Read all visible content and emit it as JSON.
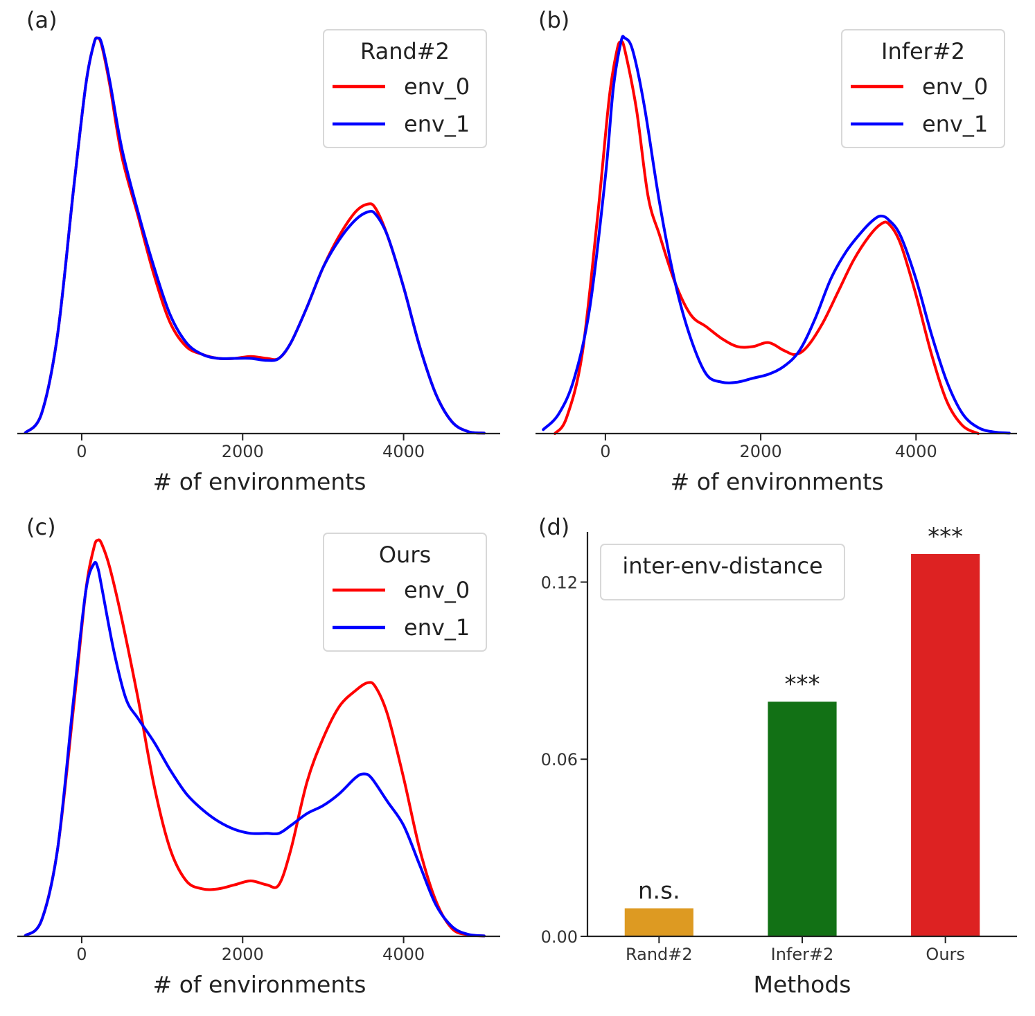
{
  "chart_data": [
    {
      "id": "a",
      "panel_label": "(a)",
      "type": "line",
      "subtype": "kde",
      "xlabel": "# of environments",
      "ylabel": "",
      "xlim": [
        -800,
        5200
      ],
      "ylim": [
        0,
        1.0
      ],
      "xticks": [
        0,
        2000,
        4000
      ],
      "xtick_labels": [
        "0",
        "2000",
        "4000"
      ],
      "legend": {
        "title": "Rand#2",
        "position": "top-right"
      },
      "series": [
        {
          "name": "env_0",
          "color": "#ff0000",
          "x": [
            -700,
            -500,
            -300,
            -100,
            50,
            150,
            200,
            250,
            350,
            500,
            700,
            900,
            1100,
            1300,
            1500,
            1700,
            1900,
            2100,
            2300,
            2450,
            2600,
            2800,
            3000,
            3200,
            3400,
            3550,
            3650,
            3800,
            4000,
            4200,
            4400,
            4600,
            4800,
            5000
          ],
          "y": [
            0.002,
            0.05,
            0.25,
            0.62,
            0.88,
            0.985,
            1.0,
            0.98,
            0.88,
            0.7,
            0.55,
            0.4,
            0.28,
            0.22,
            0.2,
            0.19,
            0.19,
            0.195,
            0.19,
            0.19,
            0.23,
            0.32,
            0.42,
            0.5,
            0.56,
            0.58,
            0.57,
            0.5,
            0.37,
            0.22,
            0.1,
            0.03,
            0.005,
            0.001
          ]
        },
        {
          "name": "env_1",
          "color": "#0000ff",
          "x": [
            -700,
            -500,
            -300,
            -100,
            50,
            150,
            200,
            250,
            350,
            500,
            700,
            900,
            1100,
            1300,
            1500,
            1700,
            1900,
            2100,
            2300,
            2450,
            2600,
            2800,
            3000,
            3200,
            3400,
            3550,
            3650,
            3800,
            4000,
            4200,
            4400,
            4600,
            4800,
            5000
          ],
          "y": [
            0.002,
            0.05,
            0.25,
            0.62,
            0.88,
            0.985,
            1.0,
            0.985,
            0.89,
            0.72,
            0.56,
            0.42,
            0.3,
            0.23,
            0.2,
            0.19,
            0.19,
            0.19,
            0.185,
            0.19,
            0.23,
            0.32,
            0.42,
            0.49,
            0.54,
            0.56,
            0.555,
            0.5,
            0.37,
            0.22,
            0.1,
            0.03,
            0.005,
            0.001
          ]
        }
      ]
    },
    {
      "id": "b",
      "panel_label": "(b)",
      "type": "line",
      "subtype": "kde",
      "xlabel": "# of environments",
      "ylabel": "",
      "xlim": [
        -900,
        5300
      ],
      "ylim": [
        0,
        1.0
      ],
      "xticks": [
        0,
        2000,
        4000
      ],
      "xtick_labels": [
        "0",
        "2000",
        "4000"
      ],
      "legend": {
        "title": "Infer#2",
        "position": "top-right"
      },
      "series": [
        {
          "name": "env_0",
          "color": "#ff0000",
          "x": [
            -650,
            -500,
            -300,
            -100,
            50,
            150,
            200,
            250,
            400,
            550,
            700,
            900,
            1100,
            1300,
            1500,
            1700,
            1900,
            2100,
            2300,
            2450,
            2600,
            2800,
            3000,
            3200,
            3400,
            3550,
            3650,
            3800,
            4000,
            4200,
            4400,
            4600,
            4800
          ],
          "y": [
            0.0,
            0.04,
            0.2,
            0.55,
            0.85,
            0.97,
            0.99,
            0.97,
            0.82,
            0.6,
            0.5,
            0.38,
            0.3,
            0.27,
            0.24,
            0.22,
            0.22,
            0.23,
            0.21,
            0.2,
            0.22,
            0.28,
            0.36,
            0.44,
            0.5,
            0.53,
            0.53,
            0.48,
            0.35,
            0.2,
            0.08,
            0.02,
            0.0
          ]
        },
        {
          "name": "env_1",
          "color": "#0000ff",
          "x": [
            -800,
            -600,
            -400,
            -200,
            0,
            100,
            200,
            250,
            350,
            500,
            700,
            900,
            1100,
            1300,
            1500,
            1700,
            1900,
            2100,
            2300,
            2500,
            2700,
            2900,
            3100,
            3300,
            3450,
            3550,
            3650,
            3800,
            4000,
            4200,
            4400,
            4600,
            4800,
            5000,
            5200
          ],
          "y": [
            0.01,
            0.05,
            0.14,
            0.32,
            0.65,
            0.87,
            0.99,
            1.0,
            0.97,
            0.83,
            0.58,
            0.38,
            0.24,
            0.15,
            0.13,
            0.13,
            0.14,
            0.15,
            0.17,
            0.21,
            0.29,
            0.39,
            0.46,
            0.51,
            0.54,
            0.55,
            0.54,
            0.5,
            0.39,
            0.25,
            0.13,
            0.05,
            0.015,
            0.004,
            0.001
          ]
        }
      ]
    },
    {
      "id": "c",
      "panel_label": "(c)",
      "type": "line",
      "subtype": "kde",
      "xlabel": "# of environments",
      "ylabel": "",
      "xlim": [
        -800,
        5200
      ],
      "ylim": [
        0,
        1.0
      ],
      "xticks": [
        0,
        2000,
        4000
      ],
      "xtick_labels": [
        "0",
        "2000",
        "4000"
      ],
      "legend": {
        "title": "Ours",
        "position": "top-right"
      },
      "series": [
        {
          "name": "env_0",
          "color": "#ff0000",
          "x": [
            -700,
            -500,
            -300,
            -100,
            50,
            150,
            200,
            250,
            350,
            500,
            700,
            900,
            1100,
            1300,
            1500,
            1700,
            1900,
            2100,
            2300,
            2450,
            2600,
            2800,
            3000,
            3200,
            3400,
            3550,
            3650,
            3800,
            4000,
            4200,
            4400,
            4600,
            4800,
            5000
          ],
          "y": [
            0.002,
            0.04,
            0.22,
            0.58,
            0.87,
            0.98,
            1.0,
            0.99,
            0.93,
            0.8,
            0.6,
            0.38,
            0.22,
            0.14,
            0.12,
            0.12,
            0.13,
            0.14,
            0.13,
            0.13,
            0.22,
            0.39,
            0.5,
            0.58,
            0.62,
            0.64,
            0.63,
            0.56,
            0.4,
            0.22,
            0.09,
            0.02,
            0.004,
            0.001
          ]
        },
        {
          "name": "env_1",
          "color": "#0000ff",
          "x": [
            -700,
            -500,
            -300,
            -100,
            50,
            150,
            200,
            250,
            400,
            550,
            700,
            900,
            1100,
            1300,
            1500,
            1700,
            1900,
            2100,
            2300,
            2450,
            2600,
            2800,
            3000,
            3200,
            3400,
            3500,
            3600,
            3800,
            4000,
            4200,
            4400,
            4600,
            4800,
            5000
          ],
          "y": [
            0.002,
            0.04,
            0.22,
            0.6,
            0.87,
            0.94,
            0.93,
            0.88,
            0.72,
            0.6,
            0.55,
            0.49,
            0.42,
            0.36,
            0.32,
            0.29,
            0.27,
            0.26,
            0.26,
            0.26,
            0.28,
            0.31,
            0.33,
            0.36,
            0.4,
            0.41,
            0.4,
            0.34,
            0.28,
            0.18,
            0.08,
            0.025,
            0.005,
            0.001
          ]
        }
      ]
    },
    {
      "id": "d",
      "panel_label": "(d)",
      "type": "bar",
      "categories": [
        "Rand#2",
        "Infer#2",
        "Ours"
      ],
      "values": [
        0.0095,
        0.0795,
        0.1295
      ],
      "colors": [
        "#dd9a22",
        "#127115",
        "#dd2222"
      ],
      "annotations": [
        "n.s.",
        "***",
        "***"
      ],
      "xlabel": "Methods",
      "ylabel": "",
      "ylim": [
        0,
        0.137
      ],
      "yticks": [
        0.0,
        0.06,
        0.12
      ],
      "ytick_labels": [
        "0.00",
        "0.06",
        "0.12"
      ],
      "legend": {
        "title": "inter-env-distance",
        "position": "top-left"
      }
    }
  ]
}
